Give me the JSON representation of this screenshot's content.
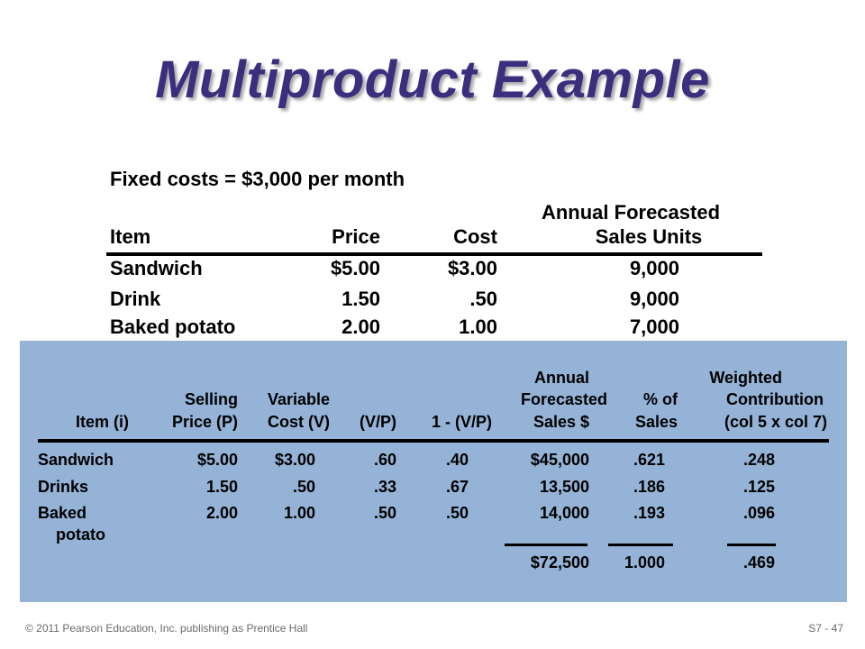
{
  "title": "Multiproduct Example",
  "fixed_costs": "Fixed costs = $3,000 per month",
  "table1": {
    "headers": {
      "item": "Item",
      "price": "Price",
      "cost": "Cost",
      "sales_line1": "Annual Forecasted",
      "sales_line2": "Sales Units"
    },
    "rows": [
      {
        "item": "Sandwich",
        "price": "$5.00",
        "cost": "$3.00",
        "units": "9,000"
      },
      {
        "item": "Drink",
        "price": "1.50",
        "cost": ".50",
        "units": "9,000"
      },
      {
        "item": "Baked potato",
        "price": "2.00",
        "cost": "1.00",
        "units": "7,000"
      }
    ]
  },
  "table2": {
    "headers": {
      "item": "Item (i)",
      "price_1": "Selling",
      "price_2": "Price (P)",
      "cost_1": "Variable",
      "cost_2": "Cost (V)",
      "vp": "(V/P)",
      "onevp": "1 - (V/P)",
      "sales_1": "Annual",
      "sales_2": "Forecasted",
      "sales_3": "Sales $",
      "pct_1": "% of",
      "pct_2": "Sales",
      "wc_1": "Weighted",
      "wc_2": "Contribution",
      "wc_3": "(col 5 x col 7)"
    },
    "rows": [
      {
        "item": "Sandwich",
        "item2": "",
        "price": "$5.00",
        "cost": "$3.00",
        "vp": ".60",
        "onevp": ".40",
        "sales": "$45,000",
        "pct": ".621",
        "wc": ".248"
      },
      {
        "item": "Drinks",
        "item2": "",
        "price": "1.50",
        "cost": ".50",
        "vp": ".33",
        "onevp": ".67",
        "sales": "13,500",
        "pct": ".186",
        "wc": ".125"
      },
      {
        "item": "Baked",
        "item2": "potato",
        "price": "2.00",
        "cost": "1.00",
        "vp": ".50",
        "onevp": ".50",
        "sales": "14,000",
        "pct": ".193",
        "wc": ".096"
      }
    ],
    "totals": {
      "sales": "$72,500",
      "pct": "1.000",
      "wc": ".469"
    }
  },
  "footer": {
    "left": "© 2011 Pearson Education, Inc. publishing as Prentice Hall",
    "right": "S7 - 47"
  },
  "colors": {
    "title": "#3b2e7e",
    "panel": "#95b3d7"
  }
}
